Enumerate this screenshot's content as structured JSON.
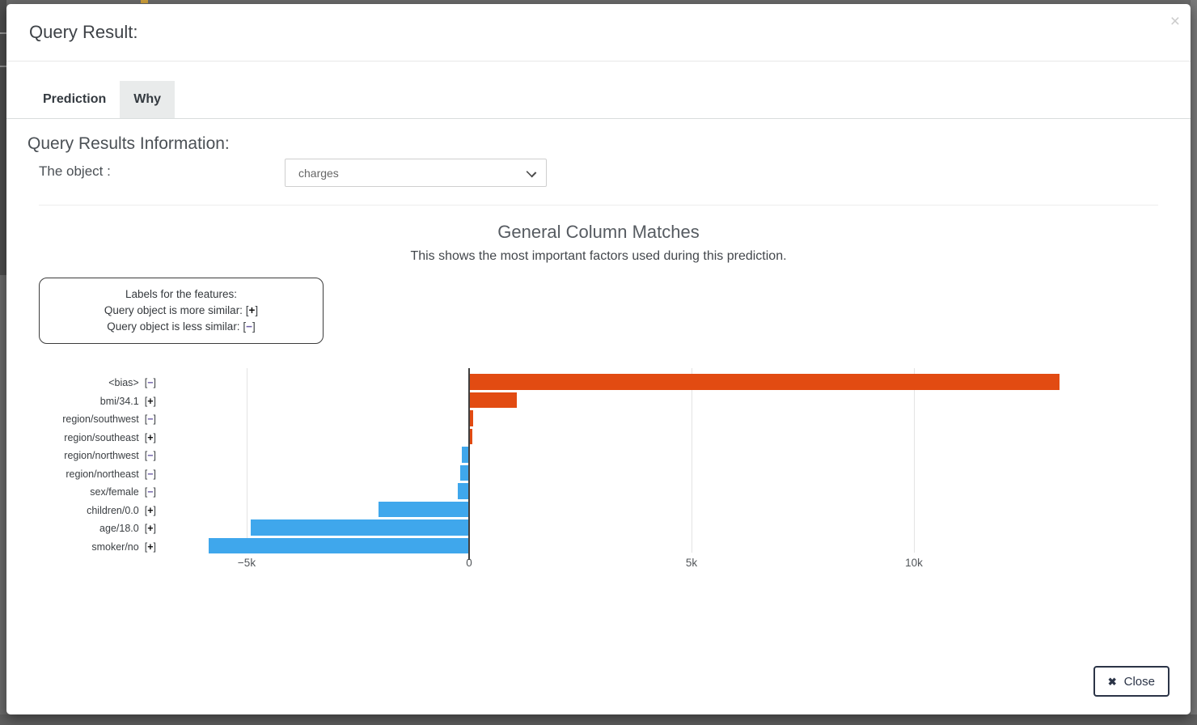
{
  "modal": {
    "title": "Query Result:",
    "corner_close_icon": "×"
  },
  "tabs": [
    {
      "label": "Prediction",
      "active": false
    },
    {
      "label": "Why",
      "active": true
    }
  ],
  "query_info": {
    "heading": "Query Results Information:",
    "object_label": "The object :",
    "select_value": "charges"
  },
  "chart_data": {
    "type": "bar",
    "orientation": "horizontal",
    "title": "General Column Matches",
    "subtitle": "This shows the most important factors used during this prediction.",
    "legend": {
      "lines": [
        {
          "text": "Labels for the features:",
          "sign": null
        },
        {
          "text": "Query object is more similar: ",
          "sign": "+"
        },
        {
          "text": "Query object is less similar: ",
          "sign": "−"
        }
      ]
    },
    "categories": [
      "<bias>",
      "bmi/34.1",
      "region/southwest",
      "region/southeast",
      "region/northwest",
      "region/northeast",
      "sex/female",
      "children/0.0",
      "age/18.0",
      "smoker/no"
    ],
    "signs": [
      "−",
      "+",
      "−",
      "+",
      "−",
      "−",
      "−",
      "+",
      "+",
      "+"
    ],
    "values": [
      13270,
      1080,
      90,
      70,
      -170,
      -195,
      -250,
      -2040,
      -4910,
      -5860
    ],
    "xticks": [
      {
        "value": -5000,
        "label": "−5k"
      },
      {
        "value": 0,
        "label": "0"
      },
      {
        "value": 5000,
        "label": "5k"
      },
      {
        "value": 10000,
        "label": "10k"
      }
    ],
    "axis": {
      "min": -6182,
      "max": 16000,
      "grid": true
    },
    "colors": {
      "positive": "#e24b12",
      "negative": "#3fa7ec",
      "minus_sign": "#6b5ca5",
      "plus_sign": "#111111"
    }
  },
  "footer": {
    "close_label": "Close",
    "close_icon": "✖"
  }
}
